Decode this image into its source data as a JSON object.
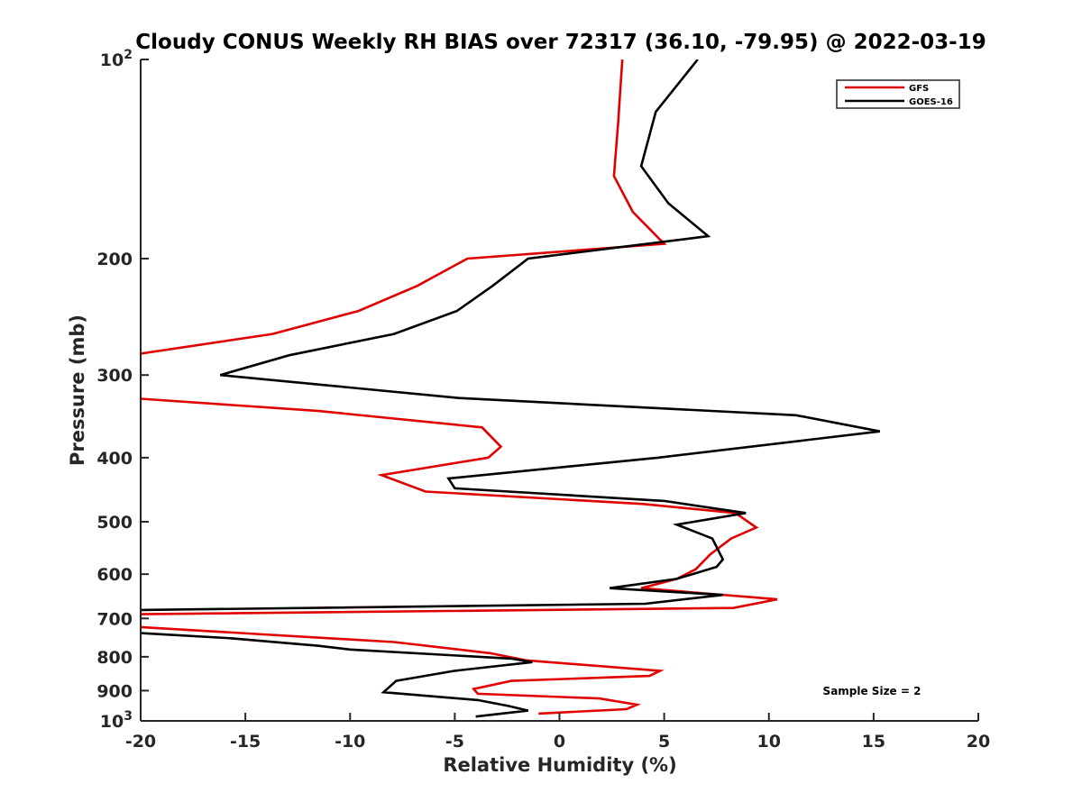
{
  "chart_data": {
    "type": "line",
    "title": "Cloudy CONUS Weekly RH BIAS over 72317 (36.10, -79.95) @ 2022-03-19",
    "xlabel": "Relative Humidity (%)",
    "ylabel": "Pressure (mb)",
    "xlim": [
      -20,
      20
    ],
    "ylim": [
      100,
      1000
    ],
    "y_scale": "log",
    "y_reversed": true,
    "x_ticks": [
      -20,
      -15,
      -10,
      -5,
      0,
      5,
      10,
      15,
      20
    ],
    "x_tick_labels": [
      "-20",
      "-15",
      "-10",
      "-5",
      "0",
      "5",
      "10",
      "15",
      "20"
    ],
    "y_ticks": [
      100,
      200,
      300,
      400,
      500,
      600,
      700,
      800,
      900,
      1000
    ],
    "y_tick_labels": [
      {
        "base": "10",
        "exp": "2"
      },
      {
        "base": "200",
        "exp": ""
      },
      {
        "base": "300",
        "exp": ""
      },
      {
        "base": "400",
        "exp": ""
      },
      {
        "base": "500",
        "exp": ""
      },
      {
        "base": "600",
        "exp": ""
      },
      {
        "base": "700",
        "exp": ""
      },
      {
        "base": "800",
        "exp": ""
      },
      {
        "base": "900",
        "exp": ""
      },
      {
        "base": "10",
        "exp": "3"
      }
    ],
    "grid": false,
    "legend_position": "top-right",
    "annotation": "Sample Size = 2",
    "series": [
      {
        "name": "GFS",
        "color": "#e00000",
        "points": [
          [
            3.0,
            100
          ],
          [
            2.8,
            125
          ],
          [
            2.6,
            150
          ],
          [
            3.5,
            170
          ],
          [
            5.0,
            190
          ],
          [
            -4.4,
            200
          ],
          [
            -6.8,
            220
          ],
          [
            -9.6,
            240
          ],
          [
            -13.7,
            260
          ],
          [
            -20.5,
            280
          ],
          [
            -20.5,
            325
          ],
          [
            -11.5,
            340
          ],
          [
            -3.7,
            360
          ],
          [
            -2.8,
            385
          ],
          [
            -3.4,
            400
          ],
          [
            -8.5,
            425
          ],
          [
            -6.4,
            450
          ],
          [
            4.0,
            470
          ],
          [
            8.4,
            485
          ],
          [
            9.4,
            510
          ],
          [
            8.2,
            530
          ],
          [
            7.2,
            560
          ],
          [
            6.5,
            590
          ],
          [
            5.6,
            610
          ],
          [
            3.9,
            630
          ],
          [
            10.4,
            655
          ],
          [
            8.3,
            675
          ],
          [
            -20.5,
            690
          ],
          [
            -20.5,
            720
          ],
          [
            -7.9,
            760
          ],
          [
            -3.3,
            790
          ],
          [
            -1.6,
            810
          ],
          [
            4.8,
            840
          ],
          [
            4.3,
            855
          ],
          [
            -2.3,
            870
          ],
          [
            -4.1,
            895
          ],
          [
            -3.9,
            910
          ],
          [
            1.9,
            925
          ],
          [
            3.7,
            945
          ],
          [
            3.2,
            960
          ],
          [
            -1.0,
            975
          ]
        ]
      },
      {
        "name": "GOES-16",
        "color": "#000000",
        "points": [
          [
            6.6,
            100
          ],
          [
            4.6,
            120
          ],
          [
            3.9,
            145
          ],
          [
            5.2,
            165
          ],
          [
            7.1,
            185
          ],
          [
            -1.5,
            200
          ],
          [
            -3.2,
            220
          ],
          [
            -4.9,
            240
          ],
          [
            -7.9,
            260
          ],
          [
            -12.9,
            280
          ],
          [
            -16.2,
            300
          ],
          [
            -4.8,
            325
          ],
          [
            11.3,
            345
          ],
          [
            15.3,
            365
          ],
          [
            4.7,
            400
          ],
          [
            -5.3,
            430
          ],
          [
            -5.0,
            445
          ],
          [
            5.0,
            465
          ],
          [
            8.9,
            485
          ],
          [
            5.6,
            505
          ],
          [
            7.3,
            530
          ],
          [
            7.8,
            570
          ],
          [
            7.5,
            585
          ],
          [
            5.6,
            610
          ],
          [
            2.4,
            630
          ],
          [
            7.8,
            645
          ],
          [
            4.1,
            665
          ],
          [
            -20.5,
            680
          ],
          [
            -20.5,
            735
          ],
          [
            -15.7,
            750
          ],
          [
            -11.5,
            770
          ],
          [
            -10.0,
            780
          ],
          [
            -2.3,
            805
          ],
          [
            -1.3,
            815
          ],
          [
            -5.0,
            840
          ],
          [
            -7.8,
            870
          ],
          [
            -8.4,
            905
          ],
          [
            -3.9,
            930
          ],
          [
            -2.4,
            950
          ],
          [
            -1.5,
            965
          ],
          [
            -4.0,
            985
          ]
        ]
      }
    ]
  }
}
